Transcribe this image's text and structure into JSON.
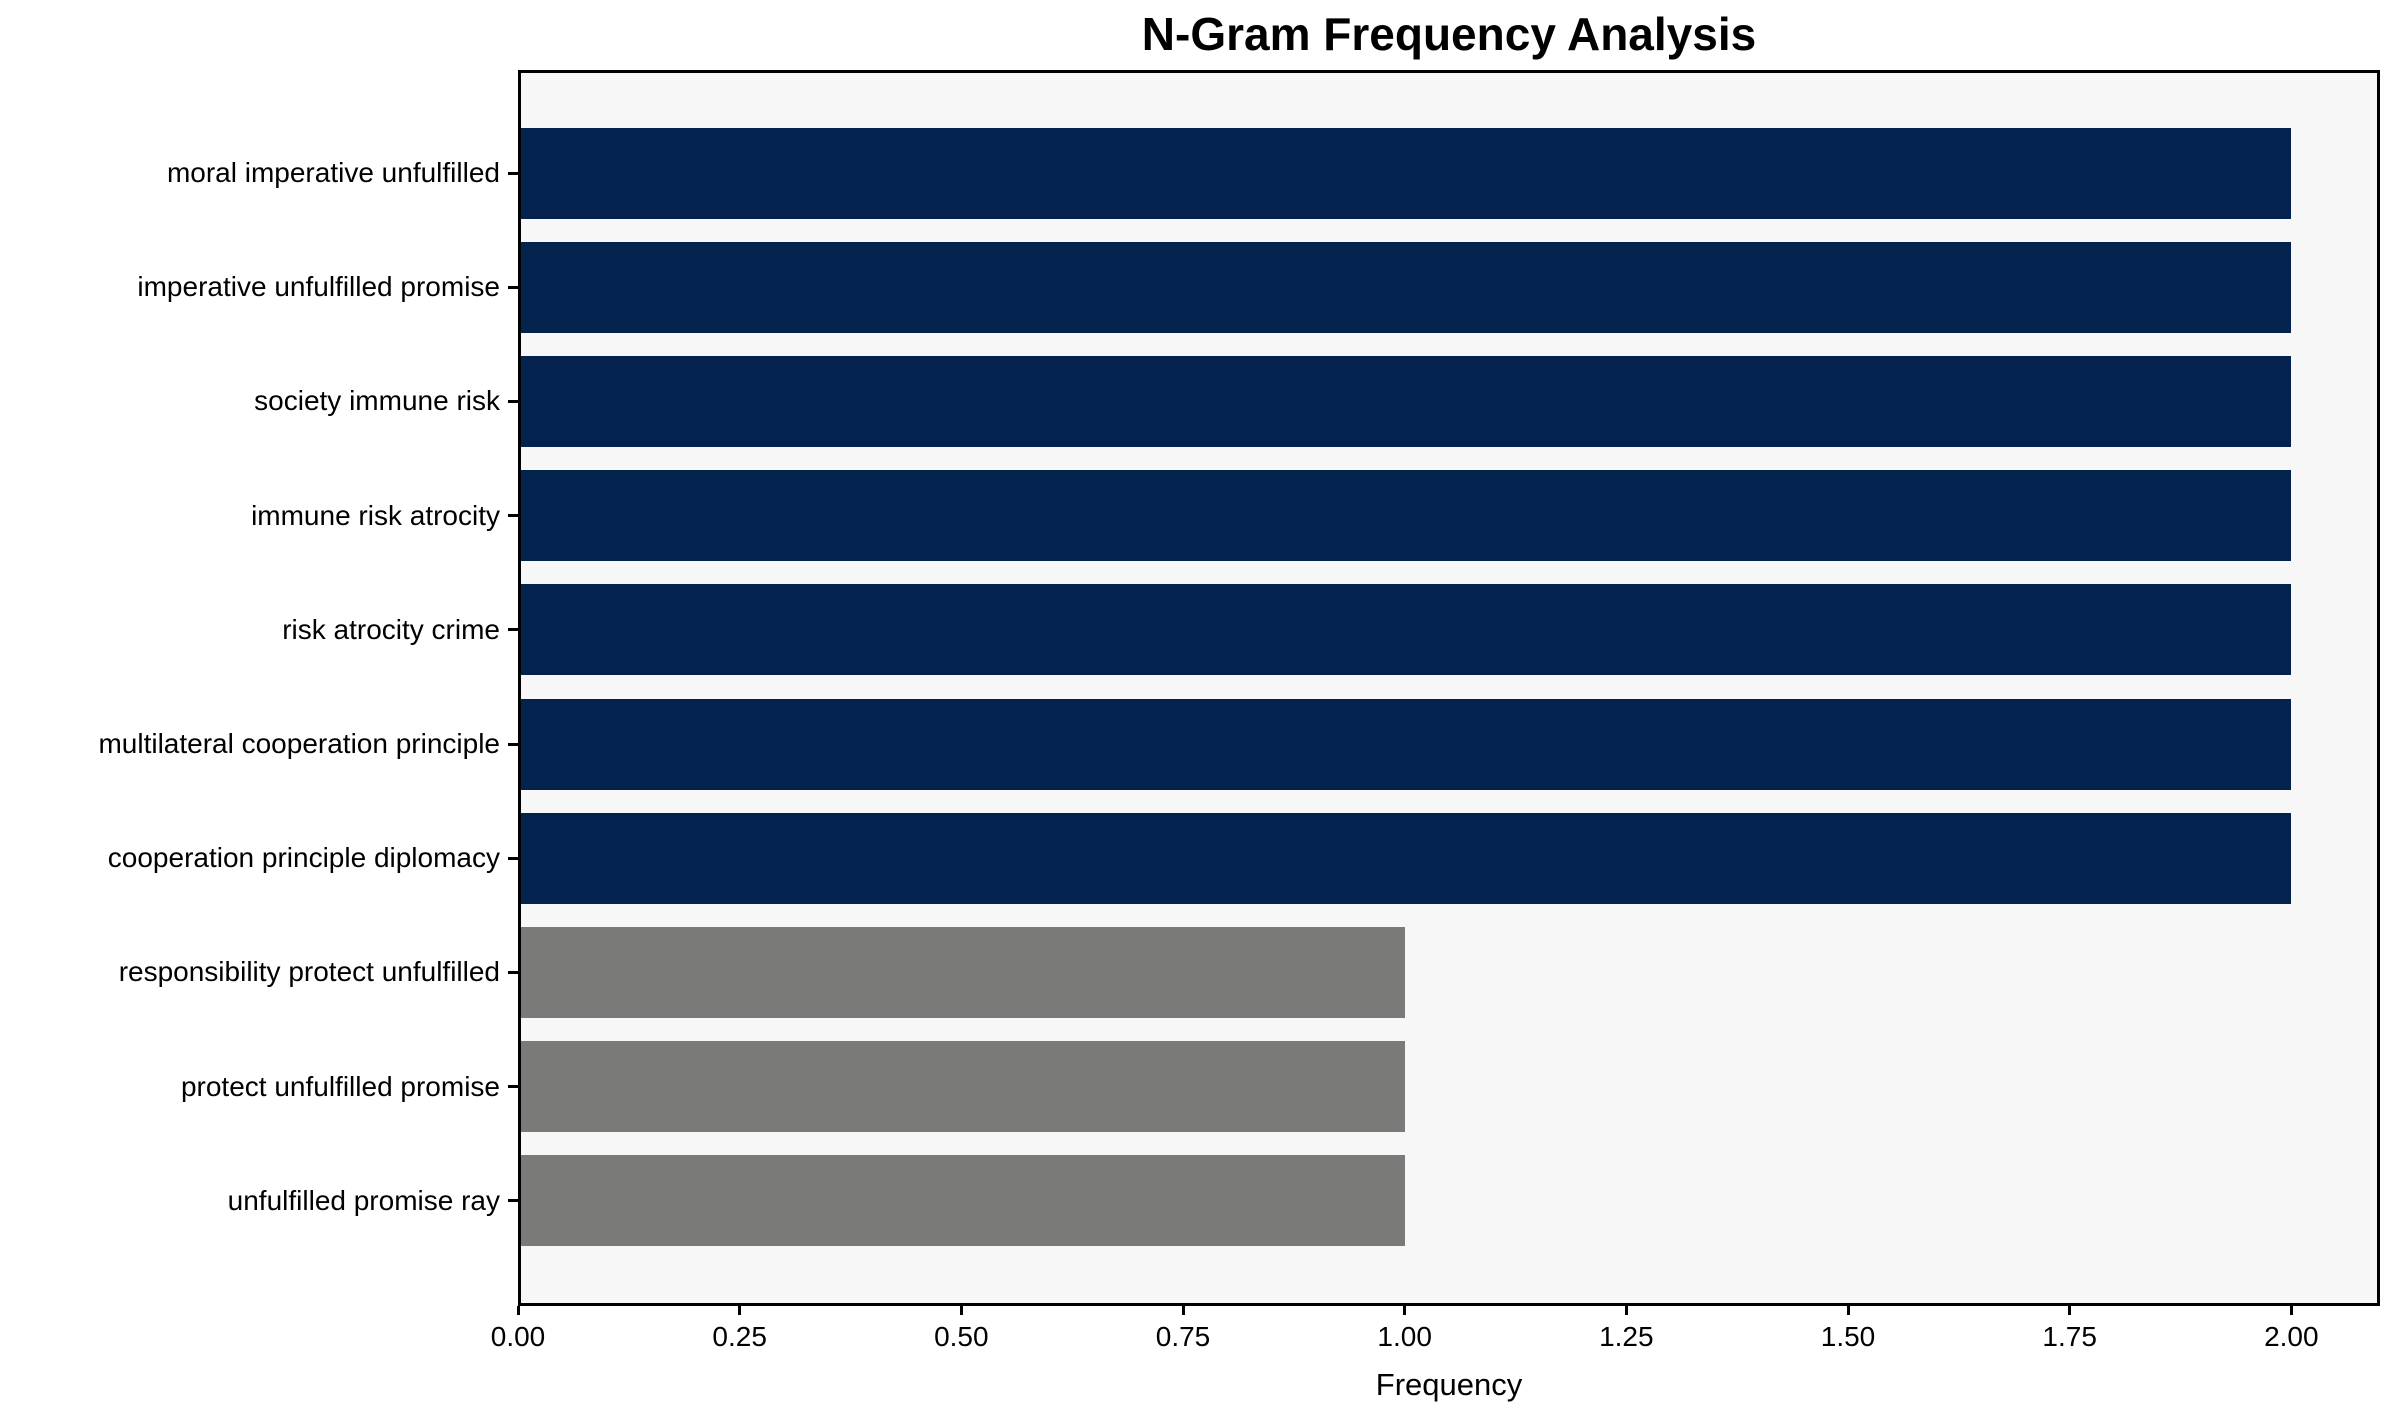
{
  "chart_data": {
    "type": "bar",
    "orientation": "horizontal",
    "title": "N-Gram Frequency Analysis",
    "xlabel": "Frequency",
    "ylabel": "",
    "categories": [
      "moral imperative unfulfilled",
      "imperative unfulfilled promise",
      "society immune risk",
      "immune risk atrocity",
      "risk atrocity crime",
      "multilateral cooperation principle",
      "cooperation principle diplomacy",
      "responsibility protect unfulfilled",
      "protect unfulfilled promise",
      "unfulfilled promise ray"
    ],
    "values": [
      2,
      2,
      2,
      2,
      2,
      2,
      2,
      1,
      1,
      1
    ],
    "bar_colors": [
      "#03224d",
      "#03224d",
      "#03224d",
      "#03224d",
      "#03224d",
      "#03224d",
      "#03224d",
      "#7a7a78",
      "#7a7a78",
      "#7a7a78"
    ],
    "xlim": [
      0,
      2.1
    ],
    "xtick_values": [
      0,
      0.25,
      0.5,
      0.75,
      1.0,
      1.25,
      1.5,
      1.75,
      2.0
    ],
    "xtick_labels": [
      "0.00",
      "0.25",
      "0.50",
      "0.75",
      "1.00",
      "1.25",
      "1.50",
      "1.75",
      "2.00"
    ],
    "grid": false,
    "legend": null,
    "colors": {
      "high_frequency_bar": "#03224d",
      "low_frequency_bar": "#7a7a78",
      "plot_background": "#f7f7f7",
      "figure_background": "#ffffff",
      "axis": "#000000",
      "text": "#000000"
    }
  }
}
